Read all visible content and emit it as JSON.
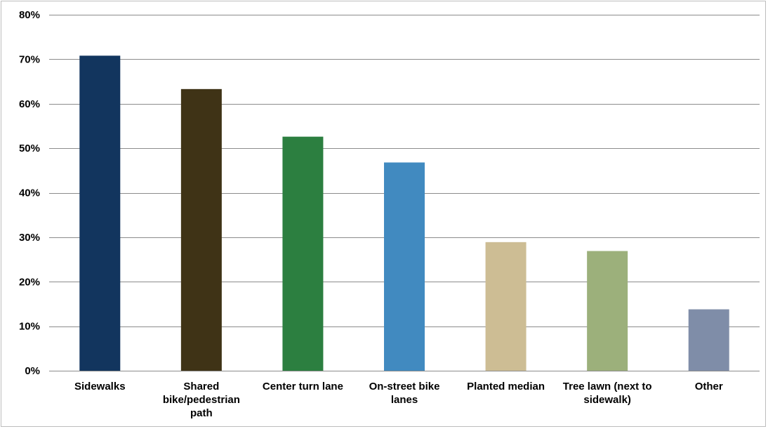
{
  "chart_data": {
    "type": "bar",
    "categories": [
      "Sidewalks",
      "Shared bike/pedestrian path",
      "Center turn lane",
      "On-street bike lanes",
      "Planted median",
      "Tree lawn (next to sidewalk)",
      "Other"
    ],
    "category_lines": [
      [
        "Sidewalks"
      ],
      [
        "Shared",
        "bike/pedestrian",
        "path"
      ],
      [
        "Center turn lane"
      ],
      [
        "On-street bike",
        "lanes"
      ],
      [
        "Planted median"
      ],
      [
        "Tree lawn (next to",
        "sidewalk)"
      ],
      [
        "Other"
      ]
    ],
    "values": [
      70.8,
      63.3,
      52.6,
      46.8,
      28.9,
      26.9,
      13.8
    ],
    "colors": [
      "#12355e",
      "#3f3316",
      "#2c7f40",
      "#418ac0",
      "#cdbd94",
      "#9cb07b",
      "#7f8da8"
    ],
    "ylim": [
      0,
      80
    ],
    "yticks": [
      0,
      10,
      20,
      30,
      40,
      50,
      60,
      70,
      80
    ],
    "ytick_labels": [
      "0%",
      "10%",
      "20%",
      "30%",
      "40%",
      "50%",
      "60%",
      "70%",
      "80%"
    ],
    "grid": true,
    "grid_color": "#8c8c8c",
    "title": "",
    "xlabel": "",
    "ylabel": ""
  }
}
